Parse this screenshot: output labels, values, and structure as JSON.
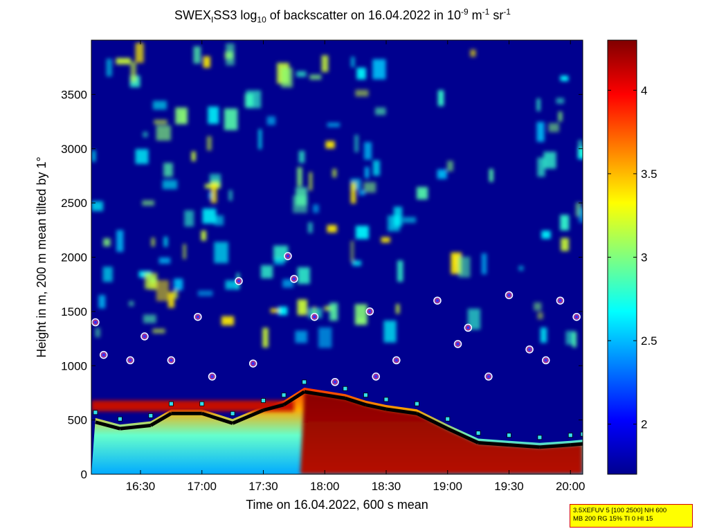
{
  "title": {
    "prefix": "SWEX",
    "sub1": "I",
    "mid": "SS3 log",
    "sub2": "10",
    "rest": " of backscatter on 16.04.2022 in 10",
    "sup1": "-9",
    "unit1": " m",
    "sup2": "-1",
    "unit2": " sr",
    "sup3": "-1"
  },
  "info_box": {
    "line1": "3.5XEFUV 5 [100 2500] NH 600",
    "line2": "MB 200 RG 15% TI 0 HI 15"
  },
  "colors": {
    "cloud_marker_fill": "#3232ff",
    "cloud_marker_edge": "#ff3333",
    "layer_marker_fill": "#33ddee",
    "background_blue": "#00008f"
  },
  "chart_data": {
    "type": "heatmap",
    "xlabel": "Time on 16.04.2022, 600 s mean",
    "ylabel": "Height in m, 200 m mean tilted by 1°",
    "xlim": [
      "16:06",
      "20:06"
    ],
    "ylim": [
      0,
      4000
    ],
    "xticks": [
      "16:30",
      "17:00",
      "17:30",
      "18:00",
      "18:30",
      "19:00",
      "19:30",
      "20:00"
    ],
    "yticks": [
      0,
      500,
      1000,
      1500,
      2000,
      2500,
      3000,
      3500
    ],
    "colorbar": {
      "min": 1.7,
      "max": 4.3,
      "ticks": [
        "2",
        "2.5",
        "3",
        "3.5",
        "4"
      ]
    },
    "boundary_layer_top": {
      "time": [
        "16:08",
        "16:20",
        "16:35",
        "16:45",
        "17:00",
        "17:15",
        "17:30",
        "17:40",
        "17:50",
        "18:10",
        "18:20",
        "18:30",
        "18:45",
        "19:00",
        "19:15",
        "19:30",
        "19:45",
        "20:00",
        "20:06"
      ],
      "height": [
        480,
        420,
        450,
        560,
        560,
        470,
        590,
        640,
        760,
        700,
        640,
        600,
        560,
        420,
        290,
        270,
        250,
        270,
        280
      ]
    },
    "cloud_base_points": {
      "time": [
        "16:08",
        "16:12",
        "16:25",
        "16:32",
        "16:45",
        "16:58",
        "17:05",
        "17:18",
        "17:25",
        "17:42",
        "17:45",
        "17:55",
        "18:05",
        "18:22",
        "18:25",
        "18:35",
        "18:55",
        "19:05",
        "19:10",
        "19:20",
        "19:30",
        "19:40",
        "19:48",
        "19:55",
        "20:03"
      ],
      "height": [
        1400,
        1100,
        1050,
        1270,
        1050,
        1450,
        900,
        1780,
        1020,
        2010,
        1800,
        1450,
        850,
        1500,
        900,
        1050,
        1600,
        1200,
        1350,
        900,
        1650,
        1150,
        1050,
        1600,
        1450
      ]
    }
  }
}
